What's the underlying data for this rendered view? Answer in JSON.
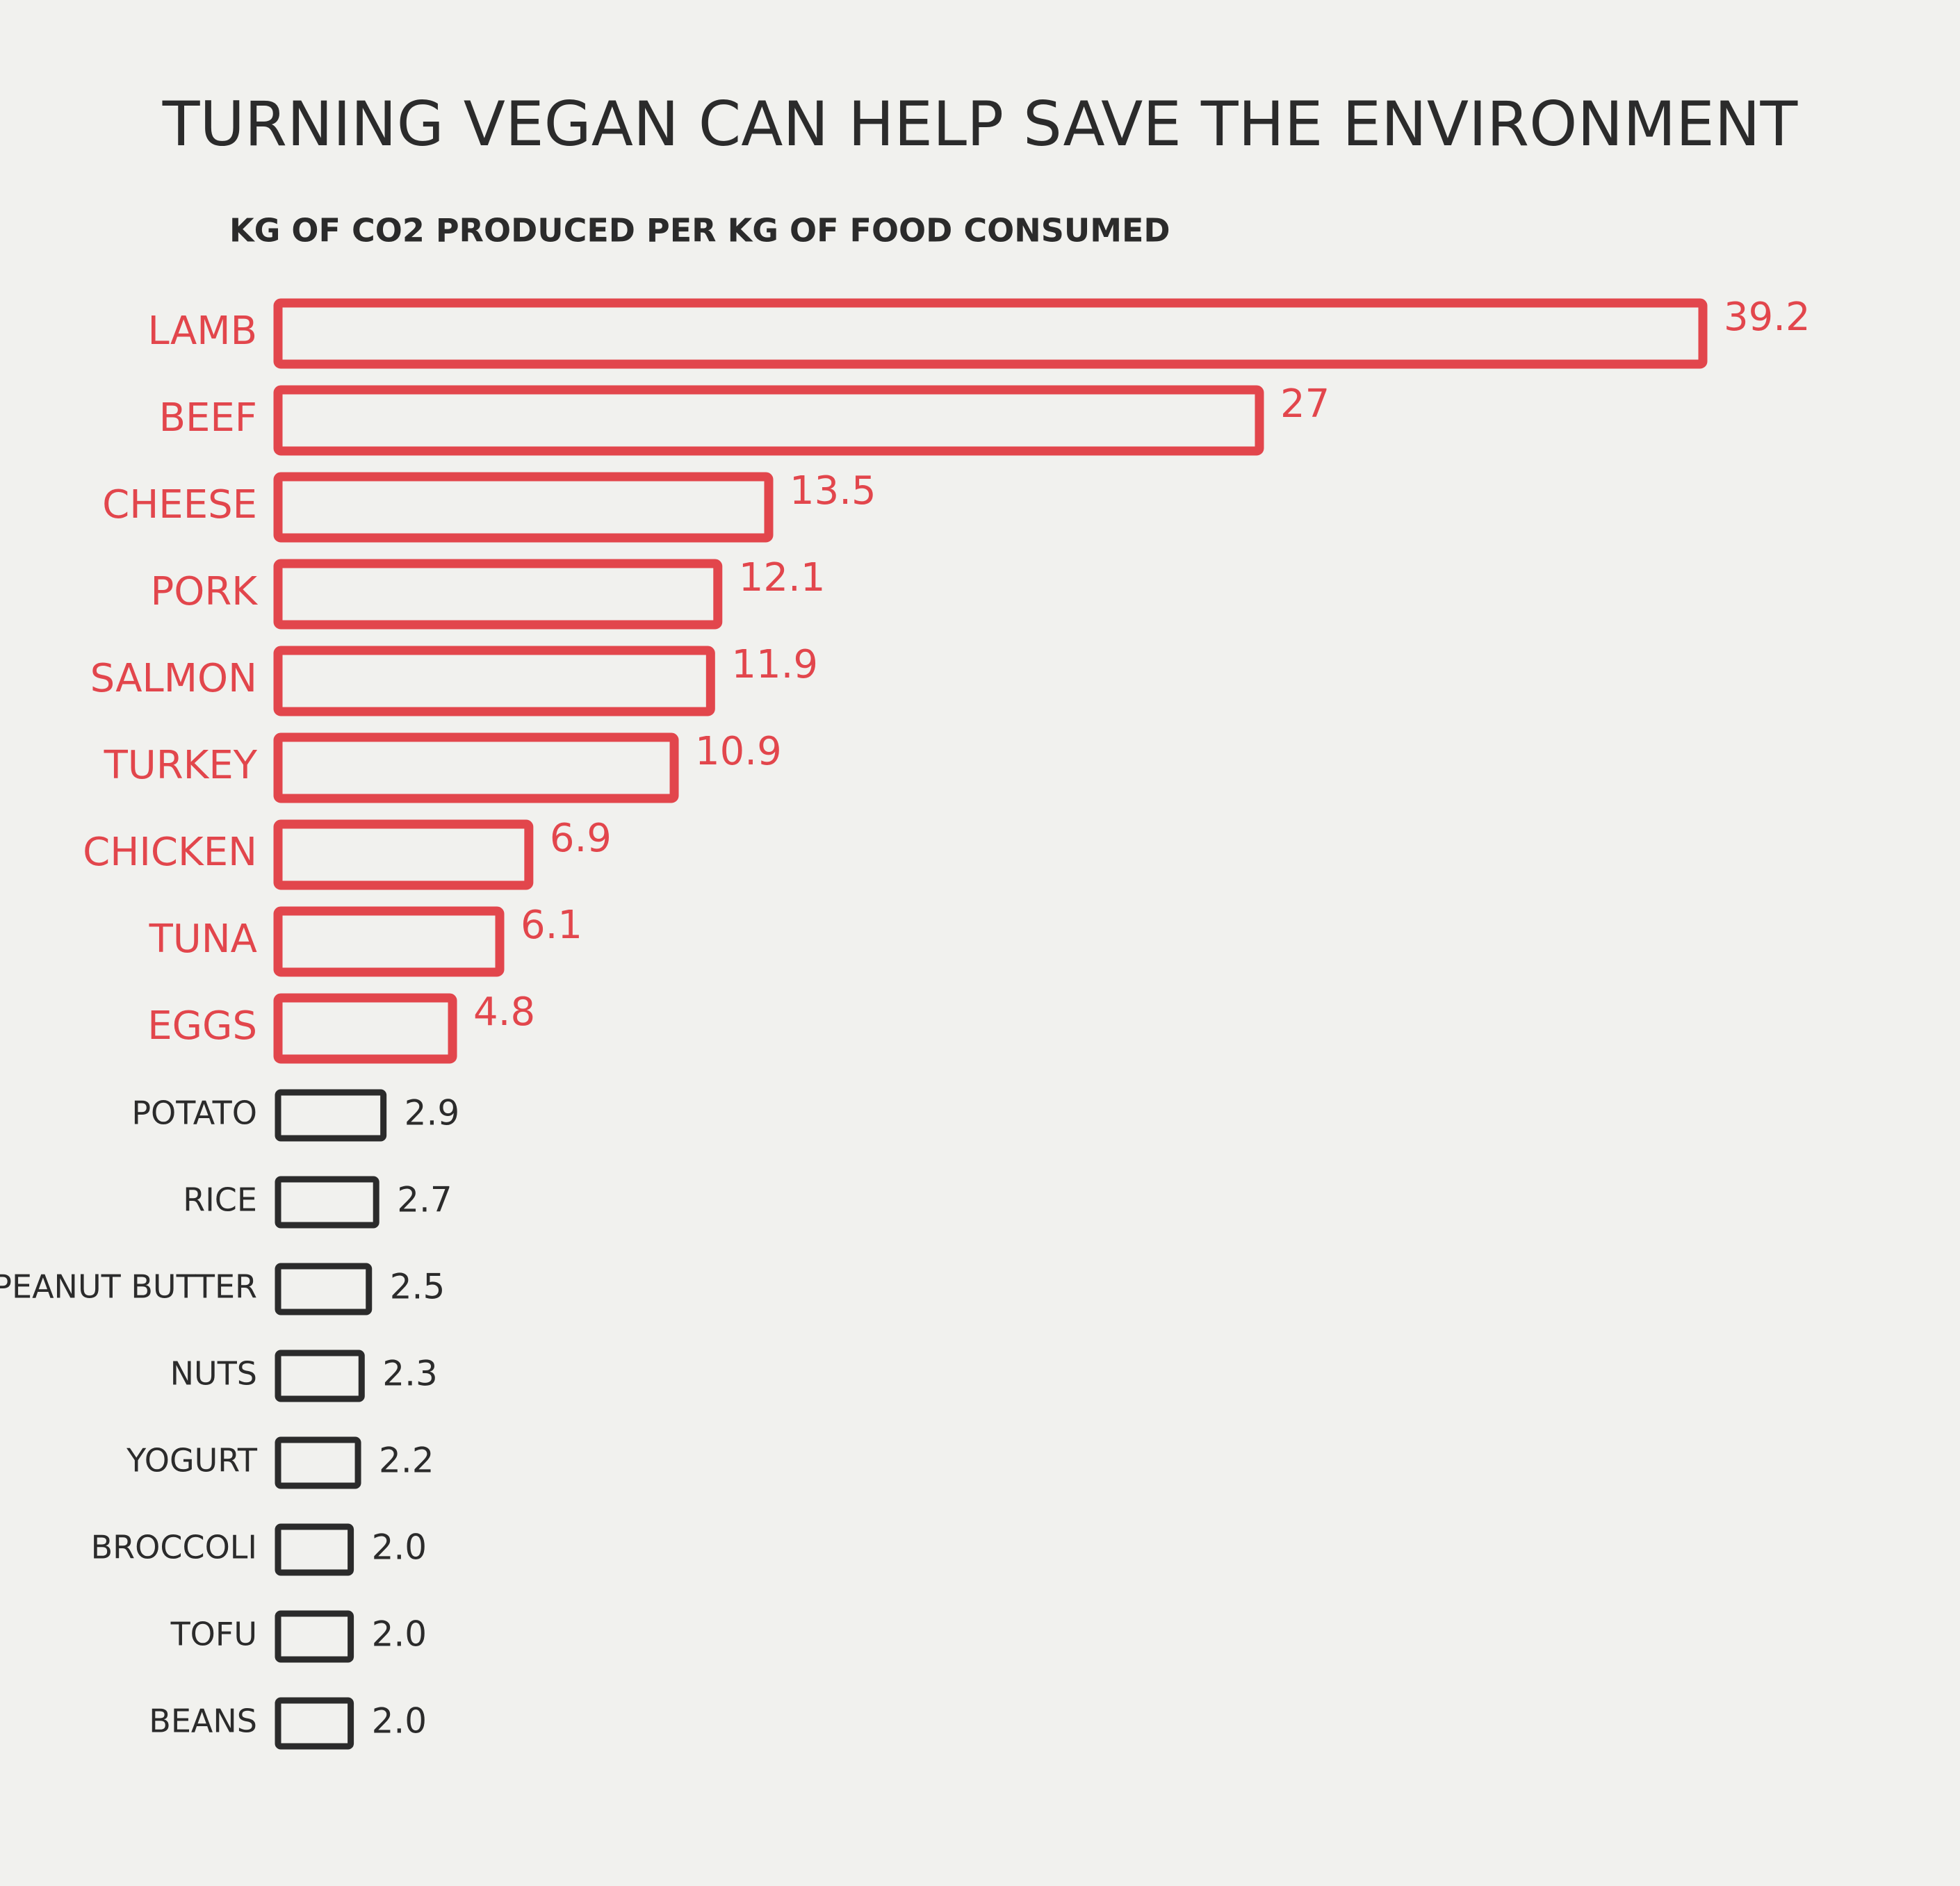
{
  "chart_data": {
    "type": "hbar",
    "title": "TURNING VEGAN CAN HELP SAVE THE ENVIRONMENT",
    "subtitle": "KG OF CO2 PRODUCED PER KG OF FOOD CONSUMED",
    "categories": [
      "LAMB",
      "BEEF",
      "CHEESE",
      "PORK",
      "SALMON",
      "TURKEY",
      "CHICKEN",
      "TUNA",
      "EGGS",
      "POTATO",
      "RICE",
      "PEANUT BUTTER",
      "NUTS",
      "YOGURT",
      "BROCCOLI",
      "TOFU",
      "BEANS"
    ],
    "values": [
      39.2,
      27,
      13.5,
      12.1,
      11.9,
      10.9,
      6.9,
      6.1,
      4.8,
      2.9,
      2.7,
      2.5,
      2.3,
      2.2,
      2.0,
      2.0,
      2.0
    ],
    "value_labels": [
      "39.2",
      "27",
      "13.5",
      "12.1",
      "11.9",
      "10.9",
      "6.9",
      "6.1",
      "4.8",
      "2.9",
      "2.7",
      "2.5",
      "2.3",
      "2.2",
      "2.0",
      "2.0",
      "2.0"
    ],
    "colors": [
      "#e2464c",
      "#e2464c",
      "#e2464c",
      "#e2464c",
      "#e2464c",
      "#e2464c",
      "#e2464c",
      "#e2464c",
      "#e2464c",
      "#2b2b2b",
      "#2b2b2b",
      "#2b2b2b",
      "#2b2b2b",
      "#2b2b2b",
      "#2b2b2b",
      "#2b2b2b",
      "#2b2b2b"
    ]
  }
}
